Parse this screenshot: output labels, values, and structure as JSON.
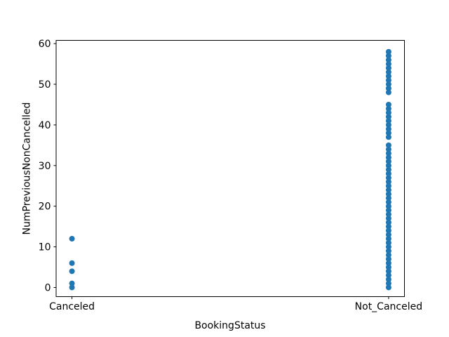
{
  "chart_data": {
    "type": "scatter",
    "title": "",
    "xlabel": "BookingStatus",
    "ylabel": "NumPreviousNonCancelled",
    "categories": [
      "Canceled",
      "Not_Canceled"
    ],
    "series": [
      {
        "name": "Canceled",
        "x": 0,
        "values": [
          0,
          1,
          4,
          6,
          12
        ]
      },
      {
        "name": "Not_Canceled",
        "x": 1,
        "values": [
          0,
          1,
          2,
          3,
          4,
          5,
          6,
          7,
          8,
          9,
          10,
          11,
          12,
          13,
          14,
          15,
          16,
          17,
          18,
          19,
          20,
          21,
          22,
          23,
          24,
          25,
          26,
          27,
          28,
          29,
          30,
          31,
          32,
          33,
          34,
          35,
          37,
          38,
          39,
          40,
          41,
          42,
          43,
          44,
          45,
          48,
          49,
          50,
          51,
          52,
          53,
          54,
          55,
          56,
          57,
          58
        ]
      }
    ],
    "yticks": [
      0,
      10,
      20,
      30,
      40,
      50,
      60
    ],
    "ylim": [
      -2.25,
      60.8
    ],
    "xlim": [
      -0.05,
      1.05
    ],
    "grid": false,
    "legend": "none",
    "point_color": "#1f77b4",
    "axis_color": "#000000",
    "background": "#ffffff"
  }
}
